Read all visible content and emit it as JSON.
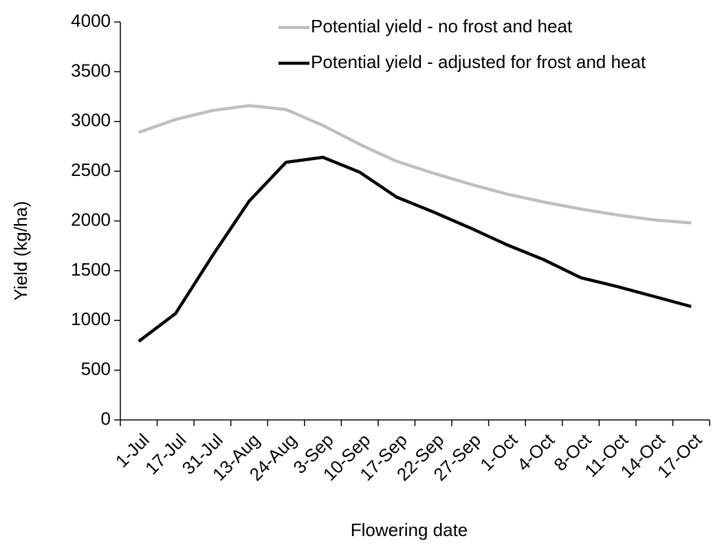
{
  "chart_data": {
    "type": "line",
    "x_label": "Flowering date",
    "y_label": "Yield (kg/ha)",
    "categories": [
      "1-Jul",
      "17-Jul",
      "31-Jul",
      "13-Aug",
      "24-Aug",
      "3-Sep",
      "10-Sep",
      "17-Sep",
      "22-Sep",
      "27-Sep",
      "1-Oct",
      "4-Oct",
      "8-Oct",
      "11-Oct",
      "14-Oct",
      "17-Oct"
    ],
    "series": [
      {
        "name": "Potential yield - no frost and heat",
        "color": "#bfbfbf",
        "values": [
          2890,
          3020,
          3110,
          3160,
          3120,
          2960,
          2770,
          2600,
          2480,
          2370,
          2270,
          2190,
          2120,
          2060,
          2010,
          1980
        ]
      },
      {
        "name": "Potential yield - adjusted for frost and heat",
        "color": "#000000",
        "values": [
          790,
          1070,
          1650,
          2200,
          2590,
          2640,
          2490,
          2240,
          2090,
          1930,
          1760,
          1610,
          1430,
          1340,
          1240,
          1140
        ]
      }
    ],
    "ylim": [
      0,
      4000
    ],
    "yticks": [
      0,
      500,
      1000,
      1500,
      2000,
      2500,
      3000,
      3500,
      4000
    ],
    "grid": false,
    "legend": "top-right"
  }
}
